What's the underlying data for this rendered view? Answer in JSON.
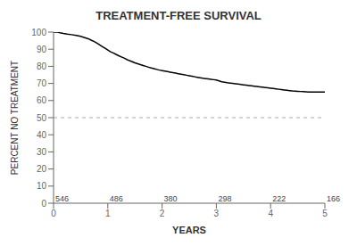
{
  "chart_data": {
    "type": "line",
    "title": "TREATMENT-FREE SURVIVAL",
    "x_label": "YEARS",
    "y_label": "PERCENT NO TREATMENT",
    "xlim": [
      0,
      5
    ],
    "ylim": [
      0,
      100
    ],
    "xticks": [
      0,
      1,
      2,
      3,
      4,
      5
    ],
    "yticks": [
      0,
      10,
      20,
      30,
      40,
      50,
      60,
      70,
      80,
      90,
      100
    ],
    "grid": false,
    "color": "#000000",
    "x": [
      0.0,
      0.08,
      0.12,
      0.18,
      0.25,
      0.33,
      0.42,
      0.5,
      0.55,
      0.6,
      0.65,
      0.7,
      0.75,
      0.8,
      0.85,
      0.9,
      0.95,
      1.0,
      1.05,
      1.1,
      1.15,
      1.2,
      1.25,
      1.3,
      1.35,
      1.4,
      1.45,
      1.5,
      1.55,
      1.6,
      1.65,
      1.7,
      1.75,
      1.8,
      1.85,
      1.9,
      1.95,
      2.0,
      2.05,
      2.1,
      2.15,
      2.2,
      2.25,
      2.3,
      2.35,
      2.4,
      2.45,
      2.5,
      2.55,
      2.6,
      2.65,
      2.7,
      2.75,
      2.8,
      2.85,
      2.9,
      2.95,
      3.0,
      3.05,
      3.1,
      3.15,
      3.2,
      3.25,
      3.3,
      3.35,
      3.4,
      3.45,
      3.5,
      3.55,
      3.6,
      3.65,
      3.7,
      3.75,
      3.8,
      3.85,
      3.9,
      3.95,
      4.0,
      4.05,
      4.1,
      4.15,
      4.2,
      4.25,
      4.3,
      4.35,
      4.4,
      4.45,
      4.5,
      4.55,
      4.6,
      4.65,
      4.7,
      4.75,
      4.8,
      4.85,
      4.9,
      4.95,
      5.0
    ],
    "values": [
      100,
      100,
      99.6,
      99.2,
      98.8,
      98.5,
      98.0,
      97.5,
      97.0,
      96.5,
      96.0,
      95.2,
      94.5,
      93.5,
      92.5,
      91.5,
      90.5,
      89.5,
      88.5,
      87.8,
      87.0,
      86.2,
      85.5,
      84.8,
      84.0,
      83.3,
      82.7,
      82.0,
      81.5,
      81.0,
      80.5,
      80.0,
      79.5,
      79.0,
      78.6,
      78.2,
      77.8,
      77.5,
      77.2,
      76.9,
      76.6,
      76.3,
      76.0,
      75.7,
      75.4,
      75.1,
      74.8,
      74.5,
      74.2,
      73.9,
      73.6,
      73.3,
      73.0,
      72.8,
      72.6,
      72.4,
      72.2,
      72.0,
      71.5,
      71.0,
      70.7,
      70.4,
      70.2,
      70.0,
      69.8,
      69.6,
      69.4,
      69.2,
      69.0,
      68.8,
      68.6,
      68.4,
      68.2,
      68.0,
      67.8,
      67.6,
      67.4,
      67.2,
      67.0,
      66.8,
      66.6,
      66.4,
      66.2,
      66.0,
      65.8,
      65.6,
      65.5,
      65.4,
      65.3,
      65.2,
      65.1,
      65.0,
      65.0,
      65.0,
      65.0,
      65.0,
      65.0,
      65.0
    ],
    "reference_lines": [
      {
        "y": 50,
        "color": "#aaaaaa",
        "line_style": "dashed"
      }
    ],
    "annotations": [
      {
        "x": 0,
        "y": 2.5,
        "text": "546"
      },
      {
        "x": 1,
        "y": 2.5,
        "text": "486"
      },
      {
        "x": 2,
        "y": 2.5,
        "text": "380"
      },
      {
        "x": 3,
        "y": 2.5,
        "text": "298"
      },
      {
        "x": 4,
        "y": 2.5,
        "text": "222"
      },
      {
        "x": 5,
        "y": 2.5,
        "text": "166"
      }
    ]
  }
}
